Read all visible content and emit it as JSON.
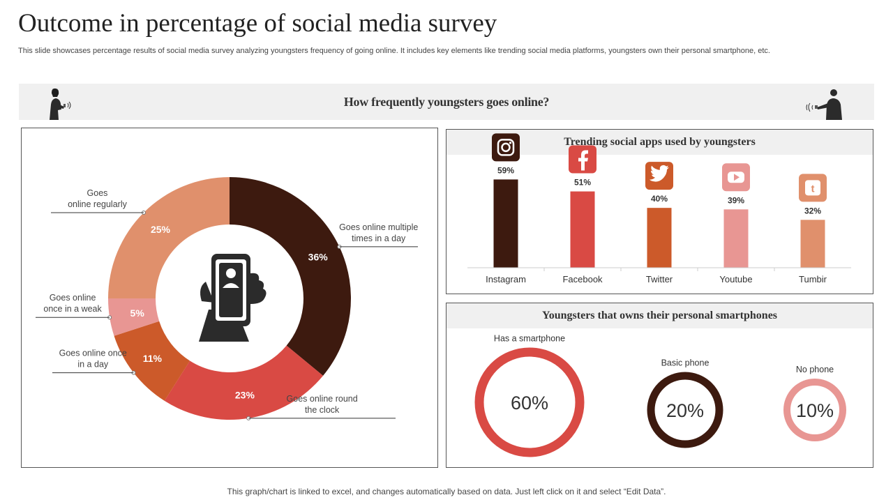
{
  "page": {
    "title": "Outcome in percentage of social media survey",
    "subtitle": "This slide showcases percentage results of social media survey analyzing youngsters frequency of going online. It includes key elements like trending social media platforms, youngsters own their personal smartphone, etc.",
    "banner": "How frequently youngsters goes online?",
    "footnote": "This graph/chart is linked to excel, and changes automatically based on data. Just left click on it and select “Edit Data”."
  },
  "chart_data": [
    {
      "type": "pie",
      "title": "",
      "categories": [
        "Goes online multiple times in a day",
        "Goes online round the clock",
        "Goes online once in a day",
        "Goes online once in a weak",
        "Goes online regularly"
      ],
      "values": [
        36,
        23,
        11,
        5,
        25
      ],
      "labels": [
        "36%",
        "23%",
        "11%",
        "5%",
        "25%"
      ],
      "colors": [
        "#3d1a0f",
        "#d94a44",
        "#cc5a2a",
        "#e89693",
        "#e0906c"
      ],
      "donut": true,
      "center_icon": "hand-holding-phone-icon"
    },
    {
      "type": "bar",
      "title": "Trending social apps used by youngsters",
      "categories": [
        "Instagram",
        "Facebook",
        "Twitter",
        "Youtube",
        "Tumbir"
      ],
      "values": [
        59,
        51,
        40,
        39,
        32
      ],
      "labels": [
        "59%",
        "51%",
        "40%",
        "39%",
        "32%"
      ],
      "colors": [
        "#3d1a0f",
        "#d94a44",
        "#cc5a2a",
        "#e89693",
        "#e0906c"
      ],
      "icons": [
        "instagram-icon",
        "facebook-icon",
        "twitter-icon",
        "youtube-icon",
        "tumblr-icon"
      ],
      "ylim": [
        0,
        100
      ]
    },
    {
      "type": "pie",
      "title": "Youngsters that owns their personal smartphones",
      "categories": [
        "Has a smartphone",
        "Basic phone",
        "No phone"
      ],
      "values": [
        60,
        20,
        10
      ],
      "labels": [
        "60%",
        "20%",
        "10%"
      ],
      "colors": [
        "#d94a44",
        "#3d1a0f",
        "#e89693"
      ],
      "donut": true
    }
  ]
}
